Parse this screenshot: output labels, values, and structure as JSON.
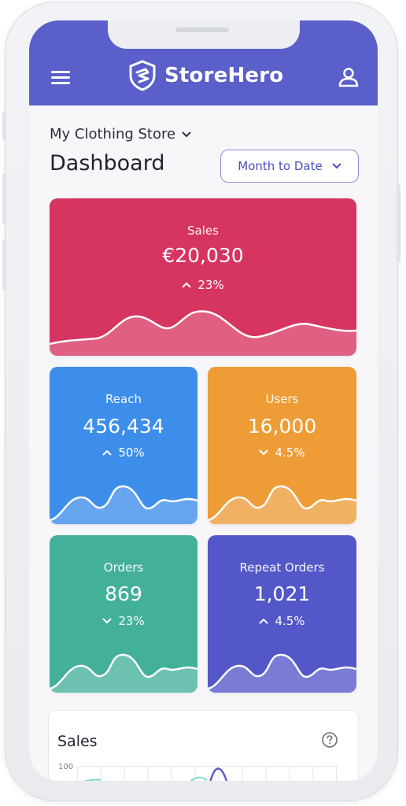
{
  "header": {
    "brand": "StoreHero"
  },
  "store_selector": {
    "label": "My Clothing Store"
  },
  "page_title": "Dashboard",
  "date_range": {
    "label": "Month to Date"
  },
  "kpis": {
    "sales": {
      "label": "Sales",
      "value": "€20,030",
      "change": "23%",
      "trend": "up",
      "color": "#d63461"
    },
    "reach": {
      "label": "Reach",
      "value": "456,434",
      "change": "50%",
      "trend": "up",
      "color": "#3d8eea"
    },
    "users": {
      "label": "Users",
      "value": "16,000",
      "change": "4.5%",
      "trend": "down",
      "color": "#ee9c36"
    },
    "orders": {
      "label": "Orders",
      "value": "869",
      "change": "23%",
      "trend": "down",
      "color": "#43b09a"
    },
    "repeat": {
      "label": "Repeat Orders",
      "value": "1,021",
      "change": "4.5%",
      "trend": "up",
      "color": "#5457c8"
    }
  },
  "sales_chart": {
    "title": "Sales",
    "y_tick": "100"
  },
  "icons": {
    "menu": "hamburger-icon",
    "logo": "shield-logo-icon",
    "account": "user-icon",
    "help": "question-circle-icon",
    "dropdown": "chevron-down-icon"
  }
}
